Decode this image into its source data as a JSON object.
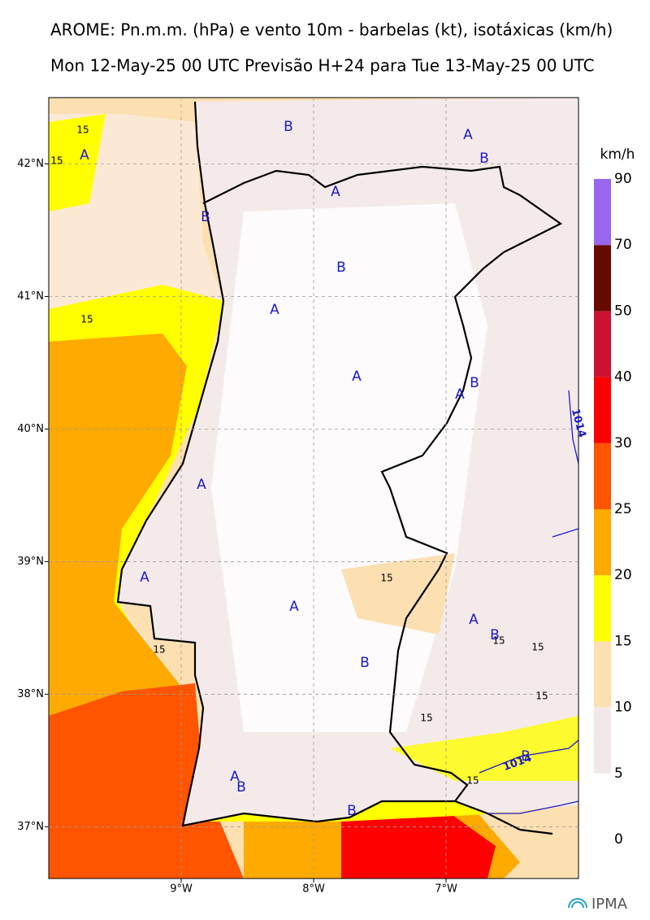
{
  "header": {
    "title": "AROME: Pn.m.m. (hPa) e vento 10m - barbelas (kt), isotáxicas (km/h)",
    "subtitle": "Mon 12-May-25 00 UTC Previsão H+24 para Tue 13-May-25 00 UTC"
  },
  "map": {
    "xlim": [
      -10,
      -6
    ],
    "ylim": [
      36.61,
      42.5
    ],
    "xticks": [
      {
        "value": -9,
        "label": "9°W"
      },
      {
        "value": -8,
        "label": "8°W"
      },
      {
        "value": -7,
        "label": "7°W"
      }
    ],
    "yticks": [
      {
        "value": 42,
        "label": "42°N"
      },
      {
        "value": 41,
        "label": "41°N"
      },
      {
        "value": 40,
        "label": "40°N"
      },
      {
        "value": 39,
        "label": "39°N"
      },
      {
        "value": 38,
        "label": "38°N"
      },
      {
        "value": 37,
        "label": "37°N"
      }
    ],
    "grid": true,
    "pressure_labels": [
      "A",
      "B",
      "A",
      "B",
      "A",
      "B",
      "B",
      "A",
      "A",
      "B",
      "A",
      "A",
      "A",
      "A",
      "B",
      "B",
      "A",
      "B",
      "A",
      "B",
      "B"
    ],
    "contour_labels": [
      "15",
      "15",
      "15",
      "15",
      "15",
      "15",
      "15",
      "15",
      "15",
      "15"
    ],
    "isobar_labels": [
      "1014",
      "1014"
    ]
  },
  "colorbar": {
    "unit": "km/h",
    "levels": [
      0,
      5,
      10,
      15,
      20,
      25,
      30,
      40,
      50,
      70,
      90
    ],
    "colors": [
      "#f3e8e8",
      "#fde0b2",
      "#ffff00",
      "#ffaa00",
      "#ff5500",
      "#ff0000",
      "#cc1133",
      "#660a00",
      "#9966ee"
    ]
  },
  "logo": "IPMA"
}
